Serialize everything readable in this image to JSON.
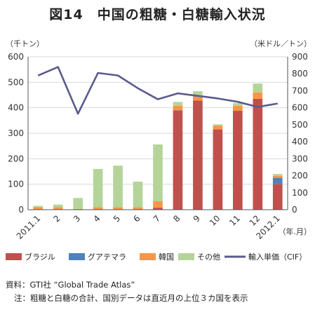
{
  "chart_data": {
    "type": "bar",
    "title": "図14　中国の粗糖・白糖輸入状況",
    "y_left_unit": "（千トン）",
    "y_right_unit": "（米ドル／トン）",
    "x_unit": "（年.月）",
    "categories": [
      "2011.1",
      "2",
      "3",
      "4",
      "5",
      "6",
      "7",
      "8",
      "9",
      "10",
      "11",
      "12",
      "2012.1"
    ],
    "y_left_ticks": [
      "0",
      "100",
      "200",
      "300",
      "400",
      "500",
      "600"
    ],
    "y_right_ticks": [
      "0",
      "100",
      "200",
      "300",
      "400",
      "500",
      "600",
      "700",
      "800",
      "900"
    ],
    "ylim_left": [
      0,
      600
    ],
    "ylim_right": [
      0,
      900
    ],
    "stacked": true,
    "series": [
      {
        "name": "ブラジル",
        "type": "bar",
        "axis": "left",
        "color": "#c0504d",
        "values": [
          0,
          0,
          0,
          0,
          0,
          0,
          8,
          390,
          428,
          315,
          388,
          435,
          100
        ]
      },
      {
        "name": "グアテマラ",
        "type": "bar",
        "axis": "left",
        "color": "#4f81bd",
        "values": [
          0,
          0,
          0,
          0,
          0,
          0,
          0,
          0,
          0,
          0,
          0,
          0,
          25
        ]
      },
      {
        "name": "韓国",
        "type": "bar",
        "axis": "left",
        "color": "#f79646",
        "values": [
          10,
          10,
          3,
          10,
          10,
          10,
          25,
          18,
          20,
          15,
          20,
          25,
          8
        ]
      },
      {
        "name": "その他",
        "type": "bar",
        "axis": "left",
        "color": "#b5d49a",
        "values": [
          5,
          10,
          43,
          150,
          163,
          100,
          223,
          15,
          17,
          5,
          10,
          35,
          7
        ]
      },
      {
        "name": "輸入単価（CIF）",
        "type": "line",
        "axis": "right",
        "color": "#5b5a8e",
        "values": [
          790,
          840,
          565,
          805,
          790,
          715,
          650,
          685,
          670,
          655,
          635,
          605,
          625
        ]
      }
    ]
  },
  "notes": {
    "source": "資料：GTI社 “Global Trade Atlas”",
    "note": "注：粗糖と白糖の合計、国別データは直近月の上位３カ国を表示"
  }
}
